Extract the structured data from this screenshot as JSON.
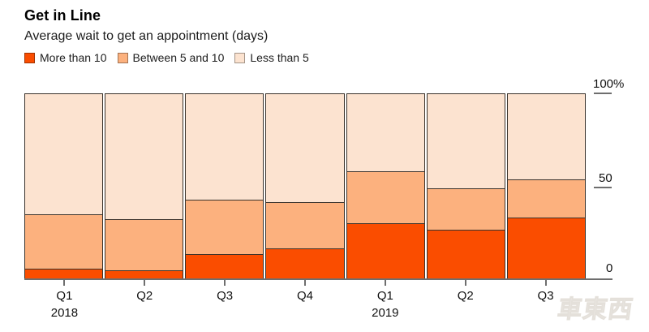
{
  "header": {
    "title": "Get in Line",
    "subtitle": "Average wait to get an appointment (days)"
  },
  "legend": [
    {
      "label": "More than 10",
      "color": "#fa4d00",
      "border": "#a33200"
    },
    {
      "label": "Between 5 and 10",
      "color": "#fcb17e",
      "border": "#bd7e53"
    },
    {
      "label": "Less than 5",
      "color": "#fce3d0",
      "border": "#c3a astonishing"
    }
  ],
  "colors": {
    "more_than_10": "#fa4d00",
    "between_5_and_10": "#fcb17e",
    "less_than_5": "#fce3d0",
    "segment_border": "#3a332c",
    "axis": "#6e6e6e",
    "text": "#1d1d1d"
  },
  "chart_data": {
    "type": "bar",
    "stacked": true,
    "unit": "percent",
    "title": "Get in Line",
    "subtitle": "Average wait to get an appointment (days)",
    "categories": [
      "Q1 2018",
      "Q2 2018",
      "Q3 2018",
      "Q4 2018",
      "Q1 2019",
      "Q2 2019",
      "Q3 2019"
    ],
    "x_tick_labels": [
      "Q1",
      "Q2",
      "Q3",
      "Q4",
      "Q1",
      "Q2",
      "Q3"
    ],
    "x_year_labels": [
      {
        "index": 0,
        "label": "2018"
      },
      {
        "index": 4,
        "label": "2019"
      }
    ],
    "series": [
      {
        "name": "More than 10",
        "values": [
          5.1,
          4.2,
          13.1,
          15.8,
          29.7,
          26.1,
          32.8
        ]
      },
      {
        "name": "Between 5 and 10",
        "values": [
          29.0,
          27.4,
          29.1,
          24.9,
          28.1,
          22.5,
          20.6
        ]
      },
      {
        "name": "Less than 5",
        "values": [
          65.9,
          68.4,
          57.8,
          59.3,
          42.2,
          51.4,
          46.6
        ]
      }
    ],
    "y_axis": {
      "ticks": [
        "100%",
        "50",
        "0"
      ],
      "min": 0,
      "max": 100,
      "position": "right"
    },
    "legend_position": "top",
    "grid": false
  },
  "watermark": {
    "text": "車東西"
  }
}
